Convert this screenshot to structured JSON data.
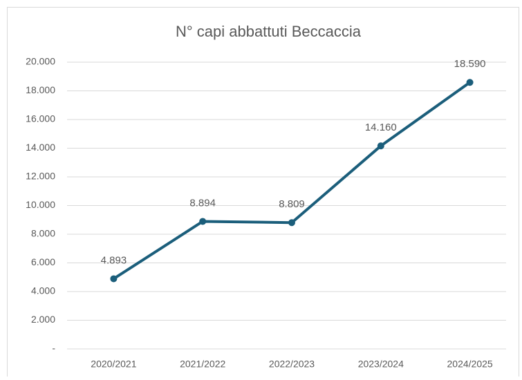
{
  "chart_data": {
    "type": "line",
    "title": "N° capi abbattuti Beccaccia",
    "categories": [
      "2020/2021",
      "2021/2022",
      "2022/2023",
      "2023/2024",
      "2024/2025"
    ],
    "series": [
      {
        "name": "N° capi abbattuti Beccaccia",
        "color": "#1b5e7b",
        "values": [
          4893,
          8894,
          8809,
          14160,
          18590
        ],
        "value_labels": [
          "4.893",
          "8.894",
          "8.809",
          "14.160",
          "18.590"
        ]
      }
    ],
    "ylim": [
      0,
      20000
    ],
    "yticks": [
      {
        "value": 0,
        "label": "-"
      },
      {
        "value": 2000,
        "label": "2.000"
      },
      {
        "value": 4000,
        "label": "4.000"
      },
      {
        "value": 6000,
        "label": "6.000"
      },
      {
        "value": 8000,
        "label": "8.000"
      },
      {
        "value": 10000,
        "label": "10.000"
      },
      {
        "value": 12000,
        "label": "12.000"
      },
      {
        "value": 14000,
        "label": "14.000"
      },
      {
        "value": 16000,
        "label": "16.000"
      },
      {
        "value": 18000,
        "label": "18.000"
      },
      {
        "value": 20000,
        "label": "20.000"
      }
    ],
    "grid": true
  }
}
